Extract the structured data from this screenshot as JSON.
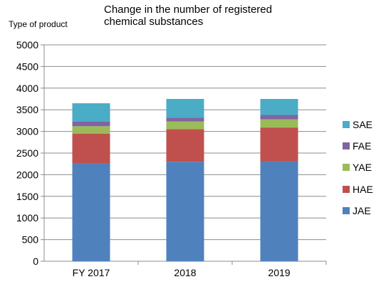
{
  "chart_data": {
    "type": "bar",
    "stacked": true,
    "title_lines": [
      "Change in the number of registered",
      "chemical substances"
    ],
    "ylabel": "Type of product",
    "xlabel": "",
    "categories": [
      "FY 2017",
      "2018",
      "2019"
    ],
    "ylim": [
      0,
      5000
    ],
    "yticks": [
      0,
      500,
      1000,
      1500,
      2000,
      2500,
      3000,
      3500,
      4000,
      4500,
      5000
    ],
    "grid": true,
    "legend_position": "right",
    "series": [
      {
        "name": "JAE",
        "color": "#4f81bd",
        "values": [
          2270,
          2300,
          2310
        ]
      },
      {
        "name": "HAE",
        "color": "#c0504d",
        "values": [
          680,
          750,
          780
        ]
      },
      {
        "name": "YAE",
        "color": "#9bbb59",
        "values": [
          170,
          180,
          190
        ]
      },
      {
        "name": "FAE",
        "color": "#8064a2",
        "values": [
          110,
          90,
          100
        ]
      },
      {
        "name": "SAE",
        "color": "#4bacc6",
        "values": [
          420,
          430,
          370
        ]
      }
    ]
  }
}
